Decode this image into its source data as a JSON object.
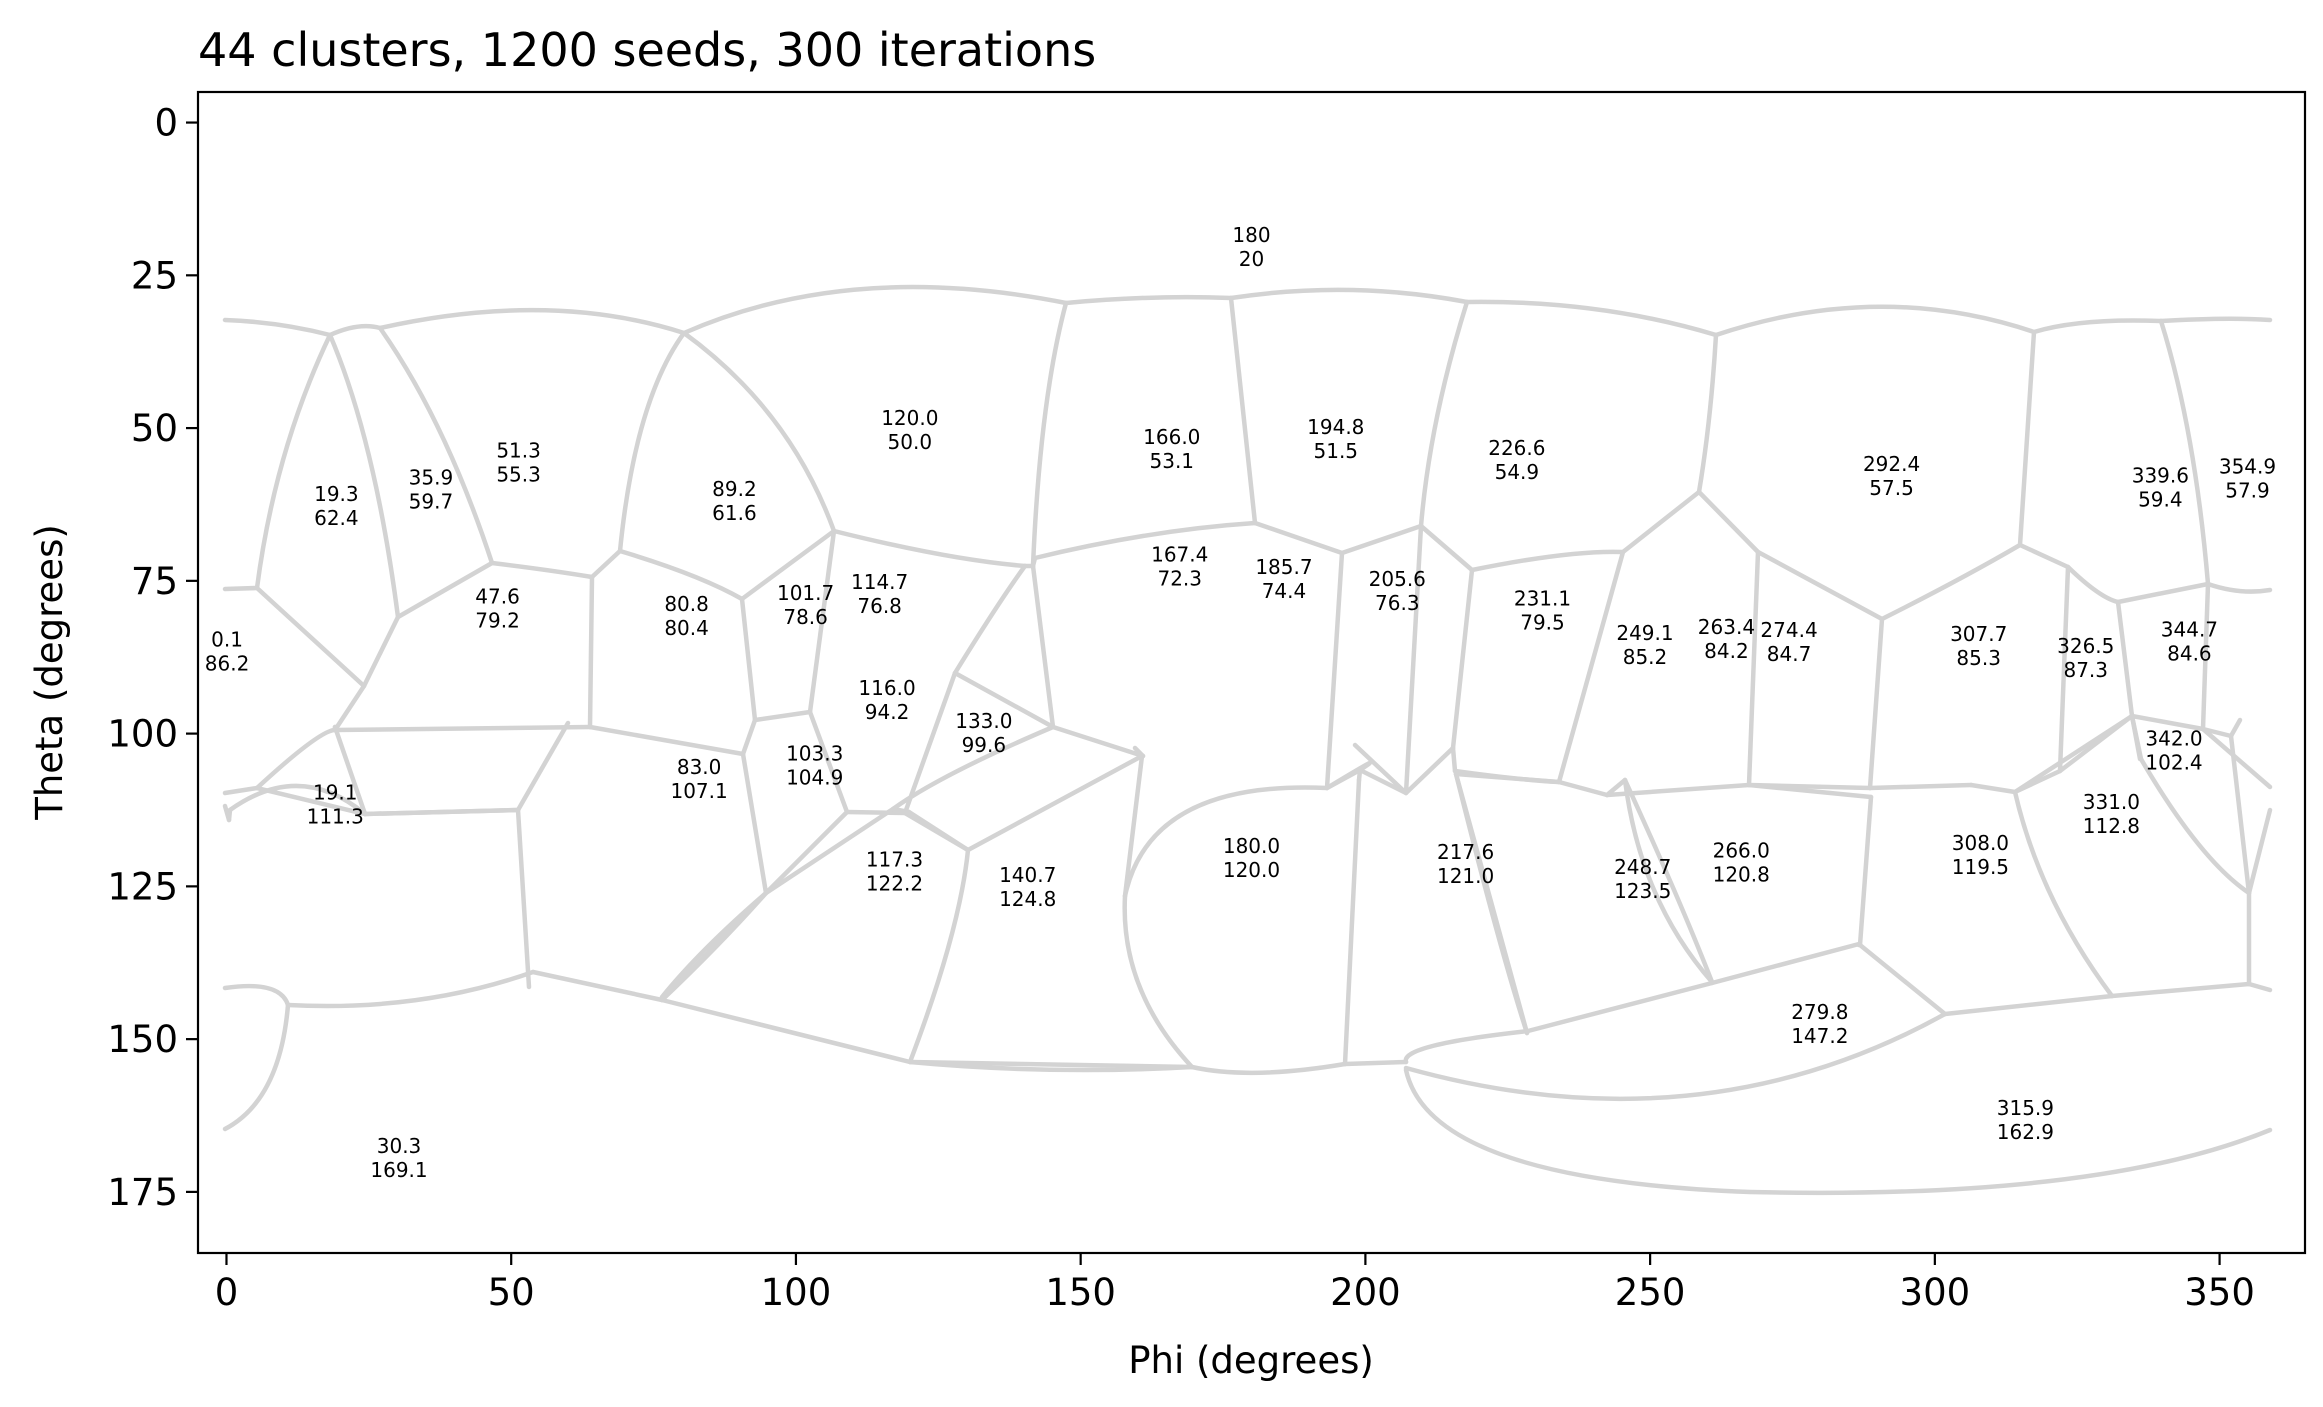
{
  "chart_data": {
    "type": "scatter",
    "title": "44 clusters, 1200 seeds, 300 iterations",
    "xlabel": "Phi (degrees)",
    "ylabel": "Theta (degrees)",
    "xlim": [
      -5,
      365
    ],
    "ylim": [
      185,
      -5
    ],
    "y_inverted": true,
    "xticks": [
      0,
      50,
      100,
      150,
      200,
      250,
      300,
      350
    ],
    "yticks": [
      0,
      25,
      50,
      75,
      100,
      125,
      150,
      175
    ],
    "grid": false,
    "boundary_color": "#d3d3d3",
    "points": [
      {
        "phi": "0.1",
        "theta": "86.2"
      },
      {
        "phi": "19.3",
        "theta": "62.4"
      },
      {
        "phi": "35.9",
        "theta": "59.7"
      },
      {
        "phi": "51.3",
        "theta": "55.3"
      },
      {
        "phi": "47.6",
        "theta": "79.2"
      },
      {
        "phi": "19.1",
        "theta": "111.3"
      },
      {
        "phi": "30.3",
        "theta": "169.1"
      },
      {
        "phi": "89.2",
        "theta": "61.6"
      },
      {
        "phi": "80.8",
        "theta": "80.4"
      },
      {
        "phi": "83.0",
        "theta": "107.1"
      },
      {
        "phi": "101.7",
        "theta": "78.6"
      },
      {
        "phi": "114.7",
        "theta": "76.8"
      },
      {
        "phi": "120.0",
        "theta": "50.0"
      },
      {
        "phi": "116.0",
        "theta": "94.2"
      },
      {
        "phi": "103.3",
        "theta": "104.9"
      },
      {
        "phi": "133.0",
        "theta": "99.6"
      },
      {
        "phi": "117.3",
        "theta": "122.2"
      },
      {
        "phi": "140.7",
        "theta": "124.8"
      },
      {
        "phi": "166.0",
        "theta": "53.1"
      },
      {
        "phi": "167.4",
        "theta": "72.3"
      },
      {
        "phi": "180",
        "theta": "20"
      },
      {
        "phi": "194.8",
        "theta": "51.5"
      },
      {
        "phi": "185.7",
        "theta": "74.4"
      },
      {
        "phi": "205.6",
        "theta": "76.3"
      },
      {
        "phi": "180.0",
        "theta": "120.0"
      },
      {
        "phi": "217.6",
        "theta": "121.0"
      },
      {
        "phi": "226.6",
        "theta": "54.9"
      },
      {
        "phi": "231.1",
        "theta": "79.5"
      },
      {
        "phi": "249.1",
        "theta": "85.2"
      },
      {
        "phi": "263.4",
        "theta": "84.2"
      },
      {
        "phi": "274.4",
        "theta": "84.7"
      },
      {
        "phi": "248.7",
        "theta": "123.5"
      },
      {
        "phi": "266.0",
        "theta": "120.8"
      },
      {
        "phi": "279.8",
        "theta": "147.2"
      },
      {
        "phi": "292.4",
        "theta": "57.5"
      },
      {
        "phi": "307.7",
        "theta": "85.3"
      },
      {
        "phi": "308.0",
        "theta": "119.5"
      },
      {
        "phi": "315.9",
        "theta": "162.9"
      },
      {
        "phi": "326.5",
        "theta": "87.3"
      },
      {
        "phi": "331.0",
        "theta": "112.8"
      },
      {
        "phi": "339.6",
        "theta": "59.4"
      },
      {
        "phi": "344.7",
        "theta": "84.6"
      },
      {
        "phi": "342.0",
        "theta": "102.4"
      },
      {
        "phi": "354.9",
        "theta": "57.9"
      }
    ]
  }
}
